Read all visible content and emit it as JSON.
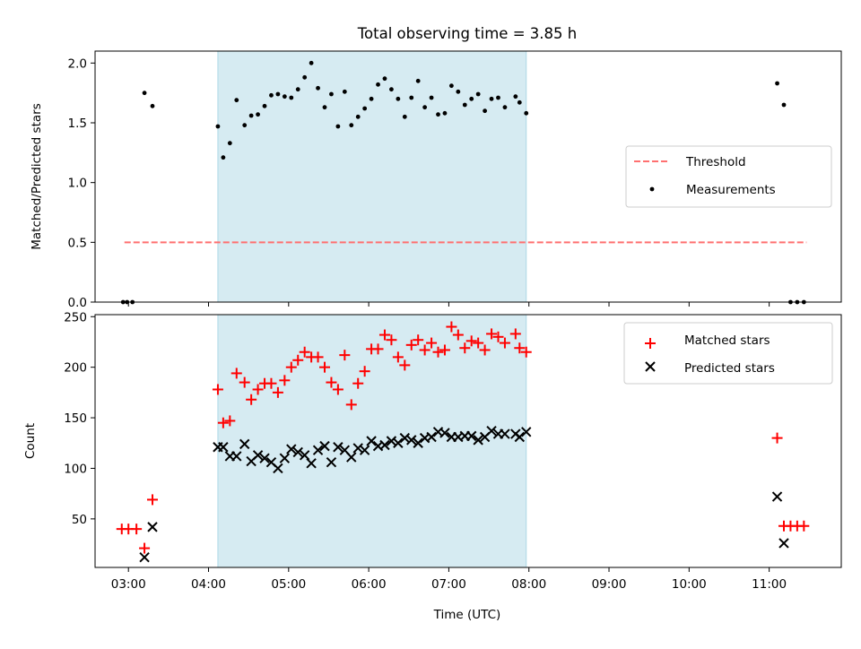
{
  "chart_data": {
    "type": "scatter",
    "title": "Total observing time = 3.85 h",
    "xlabel": "Time (UTC)",
    "x_ticks": [
      "03:00",
      "04:00",
      "05:00",
      "06:00",
      "07:00",
      "08:00",
      "09:00",
      "10:00",
      "11:00"
    ],
    "x_range": [
      "02:35",
      "11:54"
    ],
    "highlight_span": [
      "04:07",
      "07:58"
    ],
    "highlight_color": "#add8e6",
    "panels": [
      {
        "ylabel": "Matched/Predicted stars",
        "ylim": [
          0,
          2.1
        ],
        "yticks": [
          "0.0",
          "0.5",
          "1.0",
          "1.5",
          "2.0"
        ],
        "legend_position": "center-right",
        "threshold": {
          "name": "Threshold",
          "value": 0.5,
          "x_range": [
            "02:57",
            "11:28"
          ],
          "color": "#ff7070",
          "style": "dashed"
        },
        "series": [
          {
            "name": "Measurements",
            "marker": "dot",
            "color": "#000000",
            "points": [
              [
                "02:56",
                0.0
              ],
              [
                "02:59",
                0.0
              ],
              [
                "03:03",
                0.0
              ],
              [
                "03:12",
                1.75
              ],
              [
                "03:18",
                1.64
              ],
              [
                "04:07",
                1.47
              ],
              [
                "04:11",
                1.21
              ],
              [
                "04:16",
                1.33
              ],
              [
                "04:21",
                1.69
              ],
              [
                "04:27",
                1.48
              ],
              [
                "04:32",
                1.56
              ],
              [
                "04:37",
                1.57
              ],
              [
                "04:42",
                1.64
              ],
              [
                "04:47",
                1.73
              ],
              [
                "04:52",
                1.74
              ],
              [
                "04:57",
                1.72
              ],
              [
                "05:02",
                1.71
              ],
              [
                "05:07",
                1.78
              ],
              [
                "05:12",
                1.88
              ],
              [
                "05:17",
                2.0
              ],
              [
                "05:22",
                1.79
              ],
              [
                "05:27",
                1.63
              ],
              [
                "05:32",
                1.74
              ],
              [
                "05:37",
                1.47
              ],
              [
                "05:42",
                1.76
              ],
              [
                "05:47",
                1.48
              ],
              [
                "05:52",
                1.55
              ],
              [
                "05:57",
                1.62
              ],
              [
                "06:02",
                1.7
              ],
              [
                "06:07",
                1.82
              ],
              [
                "06:12",
                1.87
              ],
              [
                "06:17",
                1.78
              ],
              [
                "06:22",
                1.7
              ],
              [
                "06:27",
                1.55
              ],
              [
                "06:32",
                1.71
              ],
              [
                "06:37",
                1.85
              ],
              [
                "06:42",
                1.63
              ],
              [
                "06:47",
                1.71
              ],
              [
                "06:52",
                1.57
              ],
              [
                "06:57",
                1.58
              ],
              [
                "07:02",
                1.81
              ],
              [
                "07:07",
                1.76
              ],
              [
                "07:12",
                1.65
              ],
              [
                "07:17",
                1.7
              ],
              [
                "07:22",
                1.74
              ],
              [
                "07:27",
                1.6
              ],
              [
                "07:32",
                1.7
              ],
              [
                "07:37",
                1.71
              ],
              [
                "07:42",
                1.63
              ],
              [
                "07:50",
                1.72
              ],
              [
                "07:53",
                1.67
              ],
              [
                "07:58",
                1.58
              ],
              [
                "11:06",
                1.83
              ],
              [
                "11:11",
                1.65
              ],
              [
                "11:16",
                0.0
              ],
              [
                "11:21",
                0.0
              ],
              [
                "11:26",
                0.0
              ]
            ]
          }
        ]
      },
      {
        "ylabel": "Count",
        "ylim": [
          2,
          252
        ],
        "yticks": [
          "50",
          "100",
          "150",
          "200",
          "250"
        ],
        "legend_position": "top-right",
        "series": [
          {
            "name": "Matched stars",
            "marker": "plus",
            "color": "#ff0000",
            "points": [
              [
                "02:55",
                40
              ],
              [
                "03:00",
                40
              ],
              [
                "03:06",
                40
              ],
              [
                "03:12",
                21
              ],
              [
                "03:18",
                69
              ],
              [
                "04:07",
                178
              ],
              [
                "04:11",
                145
              ],
              [
                "04:16",
                147
              ],
              [
                "04:21",
                194
              ],
              [
                "04:27",
                185
              ],
              [
                "04:32",
                168
              ],
              [
                "04:37",
                178
              ],
              [
                "04:42",
                184
              ],
              [
                "04:47",
                184
              ],
              [
                "04:52",
                175
              ],
              [
                "04:57",
                187
              ],
              [
                "05:02",
                200
              ],
              [
                "05:07",
                207
              ],
              [
                "05:12",
                215
              ],
              [
                "05:17",
                210
              ],
              [
                "05:22",
                210
              ],
              [
                "05:27",
                200
              ],
              [
                "05:32",
                185
              ],
              [
                "05:37",
                178
              ],
              [
                "05:42",
                212
              ],
              [
                "05:47",
                163
              ],
              [
                "05:52",
                184
              ],
              [
                "05:57",
                196
              ],
              [
                "06:02",
                218
              ],
              [
                "06:07",
                218
              ],
              [
                "06:12",
                232
              ],
              [
                "06:17",
                227
              ],
              [
                "06:22",
                210
              ],
              [
                "06:27",
                202
              ],
              [
                "06:32",
                222
              ],
              [
                "06:37",
                227
              ],
              [
                "06:42",
                217
              ],
              [
                "06:47",
                224
              ],
              [
                "06:52",
                215
              ],
              [
                "06:57",
                217
              ],
              [
                "07:02",
                240
              ],
              [
                "07:07",
                232
              ],
              [
                "07:12",
                219
              ],
              [
                "07:17",
                226
              ],
              [
                "07:22",
                224
              ],
              [
                "07:27",
                217
              ],
              [
                "07:32",
                233
              ],
              [
                "07:37",
                230
              ],
              [
                "07:42",
                224
              ],
              [
                "07:50",
                233
              ],
              [
                "07:53",
                219
              ],
              [
                "07:58",
                215
              ],
              [
                "11:06",
                130
              ],
              [
                "11:11",
                43
              ],
              [
                "11:16",
                43
              ],
              [
                "11:21",
                43
              ],
              [
                "11:26",
                43
              ]
            ]
          },
          {
            "name": "Predicted stars",
            "marker": "x",
            "color": "#000000",
            "points": [
              [
                "03:12",
                12
              ],
              [
                "03:18",
                42
              ],
              [
                "04:07",
                121
              ],
              [
                "04:11",
                121
              ],
              [
                "04:16",
                112
              ],
              [
                "04:21",
                112
              ],
              [
                "04:27",
                124
              ],
              [
                "04:32",
                107
              ],
              [
                "04:37",
                113
              ],
              [
                "04:42",
                110
              ],
              [
                "04:47",
                106
              ],
              [
                "04:52",
                100
              ],
              [
                "04:57",
                110
              ],
              [
                "05:02",
                119
              ],
              [
                "05:07",
                116
              ],
              [
                "05:12",
                113
              ],
              [
                "05:17",
                105
              ],
              [
                "05:22",
                118
              ],
              [
                "05:27",
                122
              ],
              [
                "05:32",
                106
              ],
              [
                "05:37",
                121
              ],
              [
                "05:42",
                118
              ],
              [
                "05:47",
                111
              ],
              [
                "05:52",
                120
              ],
              [
                "05:57",
                118
              ],
              [
                "06:02",
                127
              ],
              [
                "06:07",
                122
              ],
              [
                "06:12",
                123
              ],
              [
                "06:17",
                127
              ],
              [
                "06:22",
                125
              ],
              [
                "06:27",
                130
              ],
              [
                "06:32",
                128
              ],
              [
                "06:37",
                125
              ],
              [
                "06:42",
                130
              ],
              [
                "06:47",
                131
              ],
              [
                "06:52",
                136
              ],
              [
                "06:57",
                135
              ],
              [
                "07:02",
                131
              ],
              [
                "07:07",
                131
              ],
              [
                "07:12",
                132
              ],
              [
                "07:17",
                132
              ],
              [
                "07:22",
                128
              ],
              [
                "07:27",
                131
              ],
              [
                "07:32",
                137
              ],
              [
                "07:37",
                134
              ],
              [
                "07:42",
                134
              ],
              [
                "07:50",
                134
              ],
              [
                "07:53",
                131
              ],
              [
                "07:58",
                136
              ],
              [
                "11:06",
                72
              ],
              [
                "11:11",
                26
              ]
            ]
          }
        ]
      }
    ]
  }
}
